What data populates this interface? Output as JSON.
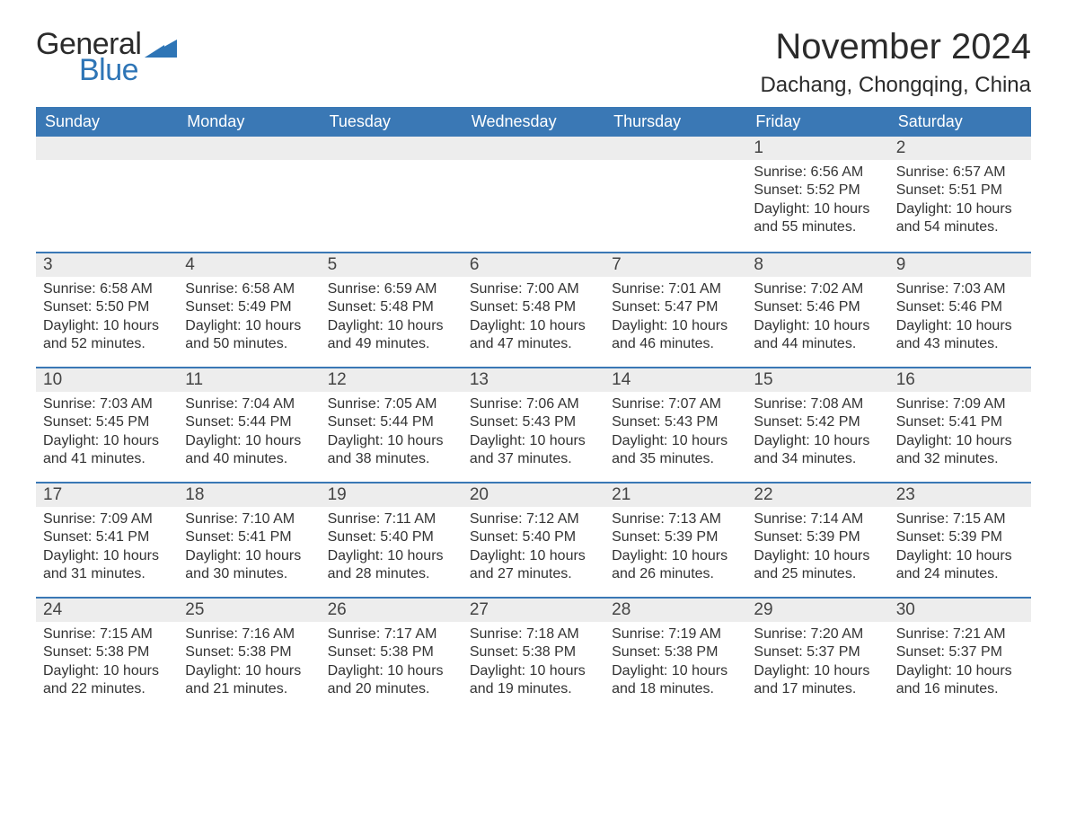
{
  "logo": {
    "word1": "General",
    "word2": "Blue",
    "tri_color": "#2e75b6"
  },
  "title": "November 2024",
  "location": "Dachang, Chongqing, China",
  "colors": {
    "header_bg": "#3a78b5",
    "header_text": "#ffffff",
    "daynum_bg": "#ededed",
    "text": "#333333",
    "border": "#3a78b5"
  },
  "day_names": [
    "Sunday",
    "Monday",
    "Tuesday",
    "Wednesday",
    "Thursday",
    "Friday",
    "Saturday"
  ],
  "weeks": [
    [
      null,
      null,
      null,
      null,
      null,
      {
        "n": "1",
        "sunrise": "6:56 AM",
        "sunset": "5:52 PM",
        "daylight": "10 hours and 55 minutes."
      },
      {
        "n": "2",
        "sunrise": "6:57 AM",
        "sunset": "5:51 PM",
        "daylight": "10 hours and 54 minutes."
      }
    ],
    [
      {
        "n": "3",
        "sunrise": "6:58 AM",
        "sunset": "5:50 PM",
        "daylight": "10 hours and 52 minutes."
      },
      {
        "n": "4",
        "sunrise": "6:58 AM",
        "sunset": "5:49 PM",
        "daylight": "10 hours and 50 minutes."
      },
      {
        "n": "5",
        "sunrise": "6:59 AM",
        "sunset": "5:48 PM",
        "daylight": "10 hours and 49 minutes."
      },
      {
        "n": "6",
        "sunrise": "7:00 AM",
        "sunset": "5:48 PM",
        "daylight": "10 hours and 47 minutes."
      },
      {
        "n": "7",
        "sunrise": "7:01 AM",
        "sunset": "5:47 PM",
        "daylight": "10 hours and 46 minutes."
      },
      {
        "n": "8",
        "sunrise": "7:02 AM",
        "sunset": "5:46 PM",
        "daylight": "10 hours and 44 minutes."
      },
      {
        "n": "9",
        "sunrise": "7:03 AM",
        "sunset": "5:46 PM",
        "daylight": "10 hours and 43 minutes."
      }
    ],
    [
      {
        "n": "10",
        "sunrise": "7:03 AM",
        "sunset": "5:45 PM",
        "daylight": "10 hours and 41 minutes."
      },
      {
        "n": "11",
        "sunrise": "7:04 AM",
        "sunset": "5:44 PM",
        "daylight": "10 hours and 40 minutes."
      },
      {
        "n": "12",
        "sunrise": "7:05 AM",
        "sunset": "5:44 PM",
        "daylight": "10 hours and 38 minutes."
      },
      {
        "n": "13",
        "sunrise": "7:06 AM",
        "sunset": "5:43 PM",
        "daylight": "10 hours and 37 minutes."
      },
      {
        "n": "14",
        "sunrise": "7:07 AM",
        "sunset": "5:43 PM",
        "daylight": "10 hours and 35 minutes."
      },
      {
        "n": "15",
        "sunrise": "7:08 AM",
        "sunset": "5:42 PM",
        "daylight": "10 hours and 34 minutes."
      },
      {
        "n": "16",
        "sunrise": "7:09 AM",
        "sunset": "5:41 PM",
        "daylight": "10 hours and 32 minutes."
      }
    ],
    [
      {
        "n": "17",
        "sunrise": "7:09 AM",
        "sunset": "5:41 PM",
        "daylight": "10 hours and 31 minutes."
      },
      {
        "n": "18",
        "sunrise": "7:10 AM",
        "sunset": "5:41 PM",
        "daylight": "10 hours and 30 minutes."
      },
      {
        "n": "19",
        "sunrise": "7:11 AM",
        "sunset": "5:40 PM",
        "daylight": "10 hours and 28 minutes."
      },
      {
        "n": "20",
        "sunrise": "7:12 AM",
        "sunset": "5:40 PM",
        "daylight": "10 hours and 27 minutes."
      },
      {
        "n": "21",
        "sunrise": "7:13 AM",
        "sunset": "5:39 PM",
        "daylight": "10 hours and 26 minutes."
      },
      {
        "n": "22",
        "sunrise": "7:14 AM",
        "sunset": "5:39 PM",
        "daylight": "10 hours and 25 minutes."
      },
      {
        "n": "23",
        "sunrise": "7:15 AM",
        "sunset": "5:39 PM",
        "daylight": "10 hours and 24 minutes."
      }
    ],
    [
      {
        "n": "24",
        "sunrise": "7:15 AM",
        "sunset": "5:38 PM",
        "daylight": "10 hours and 22 minutes."
      },
      {
        "n": "25",
        "sunrise": "7:16 AM",
        "sunset": "5:38 PM",
        "daylight": "10 hours and 21 minutes."
      },
      {
        "n": "26",
        "sunrise": "7:17 AM",
        "sunset": "5:38 PM",
        "daylight": "10 hours and 20 minutes."
      },
      {
        "n": "27",
        "sunrise": "7:18 AM",
        "sunset": "5:38 PM",
        "daylight": "10 hours and 19 minutes."
      },
      {
        "n": "28",
        "sunrise": "7:19 AM",
        "sunset": "5:38 PM",
        "daylight": "10 hours and 18 minutes."
      },
      {
        "n": "29",
        "sunrise": "7:20 AM",
        "sunset": "5:37 PM",
        "daylight": "10 hours and 17 minutes."
      },
      {
        "n": "30",
        "sunrise": "7:21 AM",
        "sunset": "5:37 PM",
        "daylight": "10 hours and 16 minutes."
      }
    ]
  ],
  "labels": {
    "sunrise": "Sunrise:",
    "sunset": "Sunset:",
    "daylight": "Daylight:"
  }
}
